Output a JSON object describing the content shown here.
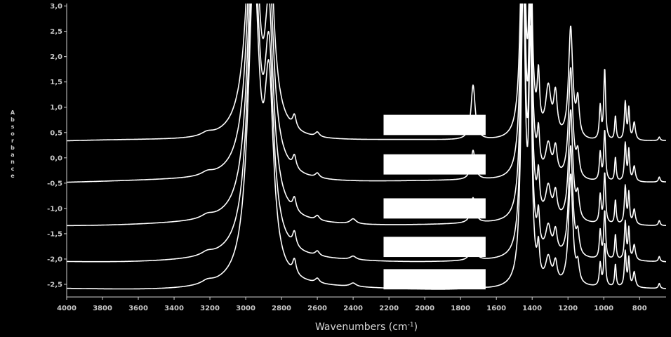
{
  "chart_data": {
    "type": "line",
    "xlabel": "Wavenumbers (cm-1)",
    "xlabel_base": "Wavenumbers (cm",
    "xlabel_sup": "-1",
    "xlabel_close": ")",
    "ylabel": "Absorbance",
    "xlim": [
      4000,
      652
    ],
    "ylim": [
      -2.75,
      3.05
    ],
    "x_ticks": [
      4000,
      3800,
      3600,
      3400,
      3200,
      3000,
      2800,
      2600,
      2400,
      2200,
      2000,
      1800,
      1600,
      1400,
      1200,
      1000,
      800
    ],
    "y_ticks": [
      "3,0",
      "2,5",
      "2,0",
      "1,5",
      "1,0",
      "0,5",
      "0,0",
      "-0,5",
      "-1,0",
      "-1,5",
      "-2,0",
      "-2,5"
    ],
    "y_tick_values": [
      3.0,
      2.5,
      2.0,
      1.5,
      1.0,
      0.5,
      0.0,
      -0.5,
      -1.0,
      -1.5,
      -2.0,
      -2.5
    ],
    "colors": {
      "background": "#000000",
      "trace": "#ffffff",
      "axis": "#d0d0d0"
    },
    "series": [
      {
        "baseline": 0.32,
        "peaks": [
          [
            3215,
            0.07,
            40
          ],
          [
            2955,
            6.0,
            38
          ],
          [
            2870,
            3.5,
            30
          ],
          [
            2728,
            0.25,
            12
          ],
          [
            2600,
            0.09,
            14
          ],
          [
            1730,
            1.08,
            14
          ],
          [
            1450,
            6.0,
            14
          ],
          [
            1410,
            4.5,
            10
          ],
          [
            1365,
            1.05,
            8
          ],
          [
            1310,
            0.95,
            18
          ],
          [
            1270,
            0.8,
            12
          ],
          [
            1185,
            2.2,
            14
          ],
          [
            1145,
            0.7,
            10
          ],
          [
            1020,
            0.65,
            6
          ],
          [
            995,
            1.4,
            6
          ],
          [
            935,
            0.48,
            5
          ],
          [
            880,
            0.75,
            6
          ],
          [
            860,
            0.6,
            5
          ],
          [
            830,
            0.35,
            8
          ],
          [
            690,
            0.07,
            6
          ]
        ]
      },
      {
        "baseline": -0.48,
        "peaks": [
          [
            3215,
            0.07,
            40
          ],
          [
            2955,
            6.0,
            38
          ],
          [
            2870,
            3.5,
            30
          ],
          [
            2728,
            0.25,
            12
          ],
          [
            2600,
            0.09,
            14
          ],
          [
            1730,
            0.58,
            14
          ],
          [
            1450,
            6.0,
            14
          ],
          [
            1410,
            4.5,
            10
          ],
          [
            1365,
            0.72,
            8
          ],
          [
            1310,
            0.62,
            18
          ],
          [
            1270,
            0.55,
            12
          ],
          [
            1185,
            2.2,
            14
          ],
          [
            1145,
            0.45,
            10
          ],
          [
            1020,
            0.55,
            6
          ],
          [
            995,
            1.0,
            6
          ],
          [
            935,
            0.48,
            5
          ],
          [
            880,
            0.75,
            6
          ],
          [
            860,
            0.6,
            5
          ],
          [
            830,
            0.3,
            8
          ],
          [
            690,
            0.1,
            6
          ]
        ]
      },
      {
        "baseline": -1.33,
        "peaks": [
          [
            3215,
            0.07,
            40
          ],
          [
            2955,
            6.0,
            38
          ],
          [
            2870,
            3.5,
            30
          ],
          [
            2728,
            0.25,
            12
          ],
          [
            2600,
            0.09,
            14
          ],
          [
            2400,
            0.1,
            20
          ],
          [
            1730,
            0.5,
            14
          ],
          [
            1450,
            6.0,
            14
          ],
          [
            1410,
            4.5,
            10
          ],
          [
            1365,
            0.72,
            8
          ],
          [
            1310,
            0.62,
            18
          ],
          [
            1270,
            0.5,
            12
          ],
          [
            1185,
            2.2,
            14
          ],
          [
            1145,
            0.45,
            10
          ],
          [
            1020,
            0.55,
            6
          ],
          [
            995,
            1.0,
            6
          ],
          [
            935,
            0.48,
            5
          ],
          [
            880,
            0.75,
            6
          ],
          [
            860,
            0.6,
            5
          ],
          [
            830,
            0.3,
            8
          ],
          [
            690,
            0.1,
            6
          ]
        ]
      },
      {
        "baseline": -2.05,
        "peaks": [
          [
            3215,
            0.07,
            40
          ],
          [
            2955,
            6.0,
            38
          ],
          [
            2870,
            3.5,
            30
          ],
          [
            2728,
            0.28,
            12
          ],
          [
            2600,
            0.09,
            14
          ],
          [
            2400,
            0.07,
            20
          ],
          [
            1730,
            0.45,
            14
          ],
          [
            1450,
            6.0,
            14
          ],
          [
            1410,
            4.5,
            10
          ],
          [
            1365,
            0.65,
            8
          ],
          [
            1310,
            0.55,
            18
          ],
          [
            1270,
            0.45,
            12
          ],
          [
            1185,
            2.2,
            14
          ],
          [
            1145,
            0.4,
            10
          ],
          [
            1020,
            0.55,
            6
          ],
          [
            995,
            0.95,
            6
          ],
          [
            935,
            0.5,
            5
          ],
          [
            880,
            0.75,
            6
          ],
          [
            860,
            0.6,
            5
          ],
          [
            830,
            0.3,
            8
          ],
          [
            690,
            0.1,
            6
          ]
        ]
      },
      {
        "baseline": -2.6,
        "peaks": [
          [
            3215,
            0.07,
            40
          ],
          [
            2955,
            6.0,
            38
          ],
          [
            2870,
            3.5,
            30
          ],
          [
            2728,
            0.28,
            12
          ],
          [
            2600,
            0.09,
            14
          ],
          [
            2400,
            0.07,
            20
          ],
          [
            1730,
            0.36,
            14
          ],
          [
            1450,
            6.0,
            14
          ],
          [
            1410,
            4.5,
            10
          ],
          [
            1365,
            0.6,
            8
          ],
          [
            1310,
            0.5,
            18
          ],
          [
            1270,
            0.4,
            12
          ],
          [
            1185,
            2.2,
            14
          ],
          [
            1145,
            0.35,
            10
          ],
          [
            1020,
            0.45,
            6
          ],
          [
            995,
            0.85,
            6
          ],
          [
            935,
            0.45,
            5
          ],
          [
            880,
            0.7,
            6
          ],
          [
            860,
            0.55,
            5
          ],
          [
            830,
            0.3,
            8
          ],
          [
            690,
            0.1,
            6
          ]
        ]
      }
    ],
    "label_boxes": [
      {
        "x_from": 2230,
        "x_to": 1660,
        "y_from": 0.45,
        "y_to": 0.85
      },
      {
        "x_from": 2230,
        "x_to": 1660,
        "y_from": -0.33,
        "y_to": 0.07
      },
      {
        "x_from": 2230,
        "x_to": 1660,
        "y_from": -1.2,
        "y_to": -0.8
      },
      {
        "x_from": 2230,
        "x_to": 1660,
        "y_from": -1.96,
        "y_to": -1.56
      },
      {
        "x_from": 2230,
        "x_to": 1660,
        "y_from": -2.6,
        "y_to": -2.2
      }
    ]
  }
}
